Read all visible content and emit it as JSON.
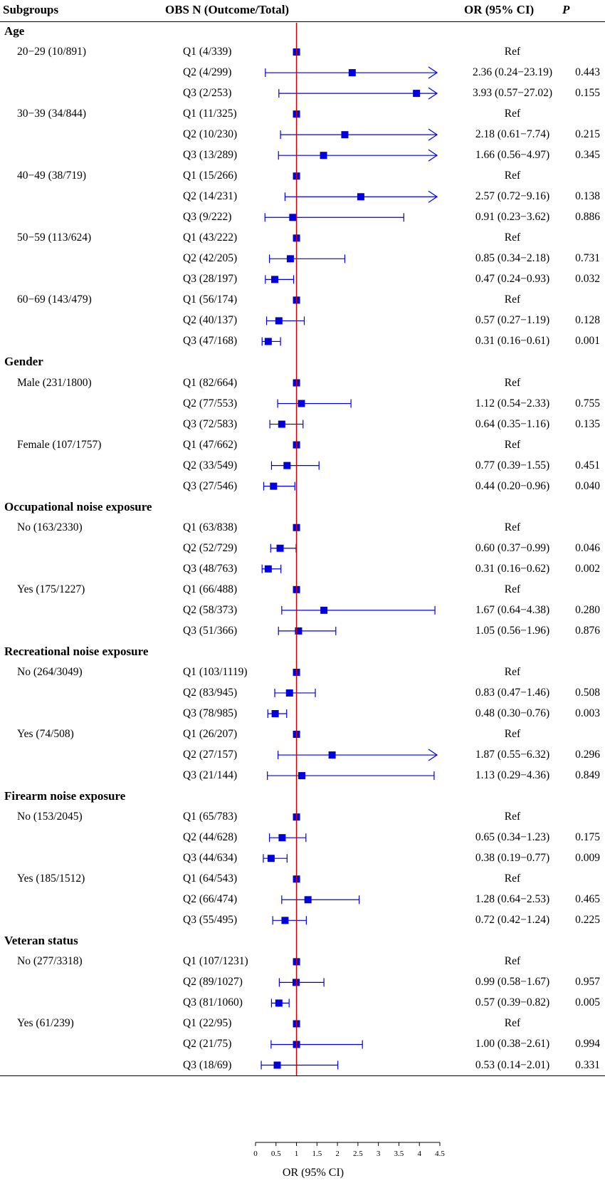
{
  "headers": {
    "subgroups": "Subgroups",
    "obs": "OBS  N (Outcome/Total)",
    "or": "OR (95% CI)",
    "p": "P"
  },
  "colors": {
    "marker": "#0000dd",
    "refline": "#cc0000"
  },
  "chart_data": {
    "type": "forest",
    "xlabel": "OR (95% CI)",
    "xlim": [
      0,
      4.5
    ],
    "xticks": [
      "0",
      "0.5",
      "1",
      "1.5",
      "2",
      "2.5",
      "3",
      "3.5",
      "4",
      "4.5"
    ],
    "reference_line": 1,
    "groups": [
      {
        "name": "Age",
        "subgroups": [
          {
            "label": "20−29 (10/891)",
            "rows": [
              {
                "q": "Q1 (4/339)",
                "or_text": "Ref",
                "p": "",
                "or": 1,
                "lo": 1,
                "hi": 1,
                "ref": true
              },
              {
                "q": "Q2 (4/299)",
                "or_text": "2.36 (0.24−23.19)",
                "p": "0.443",
                "or": 2.36,
                "lo": 0.24,
                "hi": 23.19
              },
              {
                "q": "Q3 (2/253)",
                "or_text": "3.93 (0.57−27.02)",
                "p": "0.155",
                "or": 3.93,
                "lo": 0.57,
                "hi": 27.02
              }
            ]
          },
          {
            "label": "30−39 (34/844)",
            "rows": [
              {
                "q": "Q1 (11/325)",
                "or_text": "Ref",
                "p": "",
                "or": 1,
                "lo": 1,
                "hi": 1,
                "ref": true
              },
              {
                "q": "Q2 (10/230)",
                "or_text": "2.18 (0.61−7.74)",
                "p": "0.215",
                "or": 2.18,
                "lo": 0.61,
                "hi": 7.74
              },
              {
                "q": "Q3 (13/289)",
                "or_text": "1.66 (0.56−4.97)",
                "p": "0.345",
                "or": 1.66,
                "lo": 0.56,
                "hi": 4.97
              }
            ]
          },
          {
            "label": "40−49 (38/719)",
            "rows": [
              {
                "q": "Q1 (15/266)",
                "or_text": "Ref",
                "p": "",
                "or": 1,
                "lo": 1,
                "hi": 1,
                "ref": true
              },
              {
                "q": "Q2 (14/231)",
                "or_text": "2.57 (0.72−9.16)",
                "p": "0.138",
                "or": 2.57,
                "lo": 0.72,
                "hi": 9.16
              },
              {
                "q": "Q3 (9/222)",
                "or_text": "0.91 (0.23−3.62)",
                "p": "0.886",
                "or": 0.91,
                "lo": 0.23,
                "hi": 3.62
              }
            ]
          },
          {
            "label": "50−59 (113/624)",
            "rows": [
              {
                "q": "Q1 (43/222)",
                "or_text": "Ref",
                "p": "",
                "or": 1,
                "lo": 1,
                "hi": 1,
                "ref": true
              },
              {
                "q": "Q2 (42/205)",
                "or_text": "0.85 (0.34−2.18)",
                "p": "0.731",
                "or": 0.85,
                "lo": 0.34,
                "hi": 2.18
              },
              {
                "q": "Q3 (28/197)",
                "or_text": "0.47 (0.24−0.93)",
                "p": "0.032",
                "or": 0.47,
                "lo": 0.24,
                "hi": 0.93
              }
            ]
          },
          {
            "label": "60−69 (143/479)",
            "rows": [
              {
                "q": "Q1 (56/174)",
                "or_text": "Ref",
                "p": "",
                "or": 1,
                "lo": 1,
                "hi": 1,
                "ref": true
              },
              {
                "q": "Q2 (40/137)",
                "or_text": "0.57 (0.27−1.19)",
                "p": "0.128",
                "or": 0.57,
                "lo": 0.27,
                "hi": 1.19
              },
              {
                "q": "Q3 (47/168)",
                "or_text": "0.31 (0.16−0.61)",
                "p": "0.001",
                "or": 0.31,
                "lo": 0.16,
                "hi": 0.61
              }
            ]
          }
        ]
      },
      {
        "name": "Gender",
        "subgroups": [
          {
            "label": "Male (231/1800)",
            "rows": [
              {
                "q": "Q1 (82/664)",
                "or_text": "Ref",
                "p": "",
                "or": 1,
                "lo": 1,
                "hi": 1,
                "ref": true
              },
              {
                "q": "Q2 (77/553)",
                "or_text": "1.12 (0.54−2.33)",
                "p": "0.755",
                "or": 1.12,
                "lo": 0.54,
                "hi": 2.33
              },
              {
                "q": "Q3 (72/583)",
                "or_text": "0.64 (0.35−1.16)",
                "p": "0.135",
                "or": 0.64,
                "lo": 0.35,
                "hi": 1.16
              }
            ]
          },
          {
            "label": "Female (107/1757)",
            "rows": [
              {
                "q": "Q1 (47/662)",
                "or_text": "Ref",
                "p": "",
                "or": 1,
                "lo": 1,
                "hi": 1,
                "ref": true
              },
              {
                "q": "Q2 (33/549)",
                "or_text": "0.77 (0.39−1.55)",
                "p": "0.451",
                "or": 0.77,
                "lo": 0.39,
                "hi": 1.55
              },
              {
                "q": "Q3 (27/546)",
                "or_text": "0.44 (0.20−0.96)",
                "p": "0.040",
                "or": 0.44,
                "lo": 0.2,
                "hi": 0.96
              }
            ]
          }
        ]
      },
      {
        "name": "Occupational noise exposure",
        "subgroups": [
          {
            "label": "No (163/2330)",
            "rows": [
              {
                "q": "Q1 (63/838)",
                "or_text": "Ref",
                "p": "",
                "or": 1,
                "lo": 1,
                "hi": 1,
                "ref": true
              },
              {
                "q": "Q2 (52/729)",
                "or_text": "0.60 (0.37−0.99)",
                "p": "0.046",
                "or": 0.6,
                "lo": 0.37,
                "hi": 0.99
              },
              {
                "q": "Q3 (48/763)",
                "or_text": "0.31 (0.16−0.62)",
                "p": "0.002",
                "or": 0.31,
                "lo": 0.16,
                "hi": 0.62
              }
            ]
          },
          {
            "label": "Yes (175/1227)",
            "rows": [
              {
                "q": "Q1 (66/488)",
                "or_text": "Ref",
                "p": "",
                "or": 1,
                "lo": 1,
                "hi": 1,
                "ref": true
              },
              {
                "q": "Q2 (58/373)",
                "or_text": "1.67 (0.64−4.38)",
                "p": "0.280",
                "or": 1.67,
                "lo": 0.64,
                "hi": 4.38
              },
              {
                "q": "Q3 (51/366)",
                "or_text": "1.05 (0.56−1.96)",
                "p": "0.876",
                "or": 1.05,
                "lo": 0.56,
                "hi": 1.96
              }
            ]
          }
        ]
      },
      {
        "name": "Recreational noise exposure",
        "subgroups": [
          {
            "label": "No (264/3049)",
            "rows": [
              {
                "q": "Q1 (103/1119)",
                "or_text": "Ref",
                "p": "",
                "or": 1,
                "lo": 1,
                "hi": 1,
                "ref": true
              },
              {
                "q": "Q2 (83/945)",
                "or_text": "0.83 (0.47−1.46)",
                "p": "0.508",
                "or": 0.83,
                "lo": 0.47,
                "hi": 1.46
              },
              {
                "q": "Q3 (78/985)",
                "or_text": "0.48 (0.30−0.76)",
                "p": "0.003",
                "or": 0.48,
                "lo": 0.3,
                "hi": 0.76
              }
            ]
          },
          {
            "label": "Yes (74/508)",
            "rows": [
              {
                "q": "Q1 (26/207)",
                "or_text": "Ref",
                "p": "",
                "or": 1,
                "lo": 1,
                "hi": 1,
                "ref": true
              },
              {
                "q": "Q2 (27/157)",
                "or_text": "1.87 (0.55−6.32)",
                "p": "0.296",
                "or": 1.87,
                "lo": 0.55,
                "hi": 6.32
              },
              {
                "q": "Q3 (21/144)",
                "or_text": "1.13 (0.29−4.36)",
                "p": "0.849",
                "or": 1.13,
                "lo": 0.29,
                "hi": 4.36
              }
            ]
          }
        ]
      },
      {
        "name": "Firearm noise exposure",
        "subgroups": [
          {
            "label": "No (153/2045)",
            "rows": [
              {
                "q": "Q1 (65/783)",
                "or_text": "Ref",
                "p": "",
                "or": 1,
                "lo": 1,
                "hi": 1,
                "ref": true
              },
              {
                "q": "Q2 (44/628)",
                "or_text": "0.65 (0.34−1.23)",
                "p": "0.175",
                "or": 0.65,
                "lo": 0.34,
                "hi": 1.23
              },
              {
                "q": "Q3 (44/634)",
                "or_text": "0.38 (0.19−0.77)",
                "p": "0.009",
                "or": 0.38,
                "lo": 0.19,
                "hi": 0.77
              }
            ]
          },
          {
            "label": "Yes (185/1512)",
            "rows": [
              {
                "q": "Q1 (64/543)",
                "or_text": "Ref",
                "p": "",
                "or": 1,
                "lo": 1,
                "hi": 1,
                "ref": true
              },
              {
                "q": "Q2 (66/474)",
                "or_text": "1.28 (0.64−2.53)",
                "p": "0.465",
                "or": 1.28,
                "lo": 0.64,
                "hi": 2.53
              },
              {
                "q": "Q3 (55/495)",
                "or_text": "0.72 (0.42−1.24)",
                "p": "0.225",
                "or": 0.72,
                "lo": 0.42,
                "hi": 1.24
              }
            ]
          }
        ]
      },
      {
        "name": "Veteran status",
        "subgroups": [
          {
            "label": "No (277/3318)",
            "rows": [
              {
                "q": "Q1 (107/1231)",
                "or_text": "Ref",
                "p": "",
                "or": 1,
                "lo": 1,
                "hi": 1,
                "ref": true
              },
              {
                "q": "Q2 (89/1027)",
                "or_text": "0.99 (0.58−1.67)",
                "p": "0.957",
                "or": 0.99,
                "lo": 0.58,
                "hi": 1.67
              },
              {
                "q": "Q3 (81/1060)",
                "or_text": "0.57 (0.39−0.82)",
                "p": "0.005",
                "or": 0.57,
                "lo": 0.39,
                "hi": 0.82
              }
            ]
          },
          {
            "label": "Yes (61/239)",
            "rows": [
              {
                "q": "Q1 (22/95)",
                "or_text": "Ref",
                "p": "",
                "or": 1,
                "lo": 1,
                "hi": 1,
                "ref": true
              },
              {
                "q": "Q2 (21/75)",
                "or_text": "1.00 (0.38−2.61)",
                "p": "0.994",
                "or": 1.0,
                "lo": 0.38,
                "hi": 2.61
              },
              {
                "q": "Q3 (18/69)",
                "or_text": "0.53 (0.14−2.01)",
                "p": "0.331",
                "or": 0.53,
                "lo": 0.14,
                "hi": 2.01
              }
            ]
          }
        ]
      }
    ]
  }
}
